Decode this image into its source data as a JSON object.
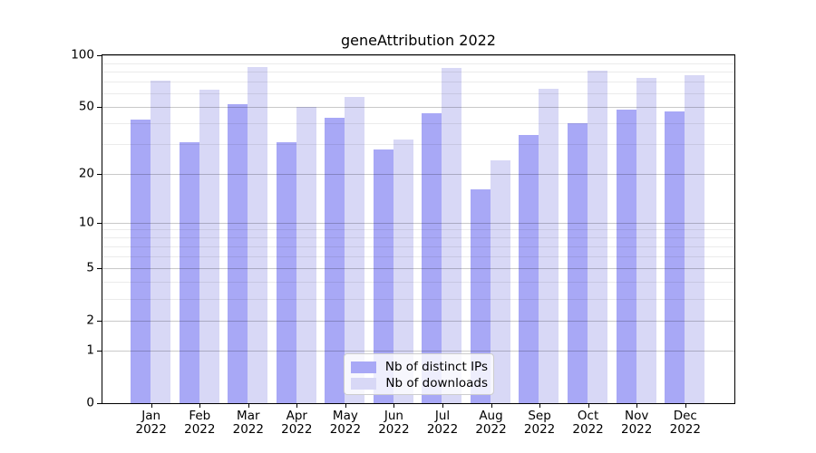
{
  "chart_data": {
    "type": "bar",
    "title": "geneAttribution 2022",
    "categories": [
      "Jan 2022",
      "Feb 2022",
      "Mar 2022",
      "Apr 2022",
      "May 2022",
      "Jun 2022",
      "Jul 2022",
      "Aug 2022",
      "Sep 2022",
      "Oct 2022",
      "Nov 2022",
      "Dec 2022"
    ],
    "series": [
      {
        "name": "Nb of distinct IPs",
        "color": "#a8a8f6",
        "values": [
          42,
          31,
          52,
          31,
          43,
          28,
          46,
          16,
          34,
          40,
          48,
          47
        ]
      },
      {
        "name": "Nb of downloads",
        "color": "#d8d8f6",
        "values": [
          71,
          63,
          85,
          50,
          57,
          32,
          84,
          24,
          64,
          81,
          74,
          77
        ]
      }
    ],
    "xlabel": "",
    "ylabel": "",
    "yscale": "log1p",
    "ylim": [
      0,
      100
    ],
    "yticks": [
      0,
      1,
      2,
      5,
      10,
      20,
      50,
      100
    ],
    "yticks_minor": [
      3,
      4,
      6,
      7,
      8,
      9,
      30,
      40,
      60,
      70,
      80,
      90
    ],
    "grid": true,
    "legend_position": "lower center",
    "colors": {
      "grid_major": "#c9c9c9",
      "grid_minor": "#ebebeb",
      "axis": "#000000",
      "text": "#000000",
      "legend_border": "#cdcdcd"
    }
  }
}
